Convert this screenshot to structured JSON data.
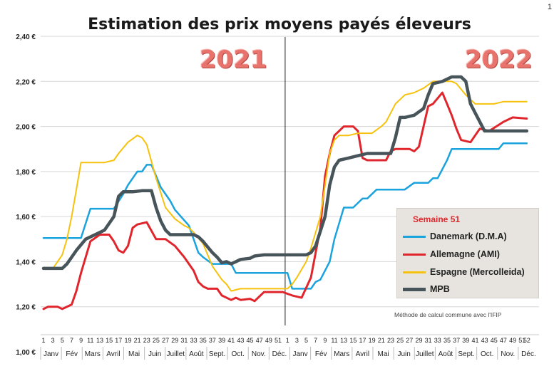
{
  "corner_text": "1",
  "chart_data": {
    "type": "line",
    "title": "Estimation des prix moyens payés éleveurs",
    "period_labels": [
      "2021",
      "2022"
    ],
    "ylim": [
      1.0,
      2.4
    ],
    "yticks": [
      "1,00 €",
      "1,20 €",
      "1,40 €",
      "1,60 €",
      "1,80 €",
      "2,00 €",
      "2,20 €",
      "2,40 €"
    ],
    "ytick_values": [
      1.0,
      1.2,
      1.4,
      1.6,
      1.8,
      2.0,
      2.2,
      2.4
    ],
    "x_tick_labels": [
      "1",
      "3",
      "5",
      "7",
      "9",
      "11",
      "13",
      "15",
      "17",
      "19",
      "21",
      "23",
      "25",
      "27",
      "29",
      "31",
      "33",
      "35",
      "37",
      "39",
      "41",
      "43",
      "45",
      "47",
      "49",
      "51",
      "1",
      "3",
      "5",
      "7",
      "9",
      "11",
      "13",
      "15",
      "17",
      "19",
      "21",
      "23",
      "25",
      "27",
      "29",
      "31",
      "33",
      "35",
      "37",
      "39",
      "41",
      "43",
      "45",
      "47",
      "49",
      "51",
      "52"
    ],
    "months": [
      "Janv",
      "Fév",
      "Mars",
      "Avril",
      "Mai",
      "Juin",
      "Juillet",
      "Août",
      "Sept.",
      "Oct.",
      "Nov.",
      "Déc.",
      "Janv",
      "Fév",
      "Mars",
      "Avril",
      "Mai",
      "Juin",
      "Juillet",
      "Août",
      "Sept.",
      "Oct.",
      "Nov.",
      "Déc."
    ],
    "legend_title": "Semaine 51",
    "note": "Méthode de calcul commune avec l'IFIP",
    "grid": "horizontal",
    "legend_placement": "right",
    "series": [
      {
        "name": "Danemark (D.M.A)",
        "color": "#1aa3dd",
        "values": [
          [
            1,
            1.505
          ],
          [
            9,
            1.505
          ],
          [
            11,
            1.635
          ],
          [
            16,
            1.635
          ],
          [
            18,
            1.7
          ],
          [
            19,
            1.74
          ],
          [
            21,
            1.8
          ],
          [
            22,
            1.8
          ],
          [
            23,
            1.83
          ],
          [
            24,
            1.83
          ],
          [
            26,
            1.73
          ],
          [
            28,
            1.67
          ],
          [
            29,
            1.63
          ],
          [
            32,
            1.56
          ],
          [
            34,
            1.44
          ],
          [
            35,
            1.42
          ],
          [
            37,
            1.39
          ],
          [
            41,
            1.39
          ],
          [
            42,
            1.35
          ],
          [
            52,
            1.35
          ],
          [
            53,
            1.35
          ],
          [
            54,
            1.28
          ],
          [
            58,
            1.28
          ],
          [
            59,
            1.31
          ],
          [
            60,
            1.32
          ],
          [
            62,
            1.4
          ],
          [
            63,
            1.5
          ],
          [
            65,
            1.64
          ],
          [
            67,
            1.64
          ],
          [
            69,
            1.68
          ],
          [
            70,
            1.68
          ],
          [
            72,
            1.72
          ],
          [
            78,
            1.72
          ],
          [
            80,
            1.75
          ],
          [
            83,
            1.75
          ],
          [
            84,
            1.77
          ],
          [
            85,
            1.77
          ],
          [
            87,
            1.85
          ],
          [
            88,
            1.9
          ],
          [
            98,
            1.9
          ],
          [
            99,
            1.925
          ],
          [
            104,
            1.925
          ]
        ]
      },
      {
        "name": "Allemagne (AMI)",
        "color": "#e0262c",
        "values": [
          [
            1,
            1.19
          ],
          [
            2,
            1.2
          ],
          [
            4,
            1.2
          ],
          [
            5,
            1.19
          ],
          [
            7,
            1.21
          ],
          [
            8,
            1.27
          ],
          [
            9,
            1.35
          ],
          [
            11,
            1.49
          ],
          [
            13,
            1.52
          ],
          [
            15,
            1.52
          ],
          [
            16,
            1.49
          ],
          [
            17,
            1.45
          ],
          [
            18,
            1.44
          ],
          [
            19,
            1.47
          ],
          [
            20,
            1.55
          ],
          [
            21,
            1.565
          ],
          [
            23,
            1.575
          ],
          [
            25,
            1.5
          ],
          [
            27,
            1.5
          ],
          [
            29,
            1.47
          ],
          [
            31,
            1.42
          ],
          [
            33,
            1.36
          ],
          [
            34,
            1.31
          ],
          [
            35,
            1.29
          ],
          [
            36,
            1.28
          ],
          [
            38,
            1.28
          ],
          [
            39,
            1.25
          ],
          [
            41,
            1.23
          ],
          [
            42,
            1.24
          ],
          [
            43,
            1.23
          ],
          [
            45,
            1.235
          ],
          [
            46,
            1.225
          ],
          [
            48,
            1.265
          ],
          [
            52,
            1.265
          ],
          [
            54,
            1.25
          ],
          [
            56,
            1.24
          ],
          [
            58,
            1.33
          ],
          [
            60,
            1.55
          ],
          [
            61,
            1.78
          ],
          [
            62,
            1.88
          ],
          [
            63,
            1.96
          ],
          [
            64,
            1.98
          ],
          [
            65,
            2.0
          ],
          [
            67,
            2.0
          ],
          [
            68,
            1.98
          ],
          [
            69,
            1.86
          ],
          [
            70,
            1.85
          ],
          [
            74,
            1.85
          ],
          [
            75,
            1.89
          ],
          [
            76,
            1.9
          ],
          [
            79,
            1.9
          ],
          [
            80,
            1.89
          ],
          [
            81,
            1.91
          ],
          [
            83,
            2.09
          ],
          [
            84,
            2.1
          ],
          [
            86,
            2.15
          ],
          [
            87,
            2.1
          ],
          [
            88,
            2.05
          ],
          [
            89,
            1.99
          ],
          [
            90,
            1.94
          ],
          [
            92,
            1.93
          ],
          [
            93,
            1.96
          ],
          [
            94,
            1.99
          ],
          [
            96,
            1.98
          ],
          [
            99,
            2.02
          ],
          [
            101,
            2.04
          ],
          [
            104,
            2.035
          ]
        ]
      },
      {
        "name": "Espagne (Mercolleida)",
        "color": "#f7c20d",
        "values": [
          [
            1,
            1.37
          ],
          [
            3,
            1.37
          ],
          [
            5,
            1.43
          ],
          [
            6,
            1.5
          ],
          [
            7,
            1.6
          ],
          [
            8,
            1.72
          ],
          [
            9,
            1.84
          ],
          [
            11,
            1.84
          ],
          [
            14,
            1.84
          ],
          [
            16,
            1.85
          ],
          [
            17,
            1.88
          ],
          [
            19,
            1.93
          ],
          [
            21,
            1.96
          ],
          [
            22,
            1.95
          ],
          [
            23,
            1.92
          ],
          [
            25,
            1.77
          ],
          [
            27,
            1.64
          ],
          [
            29,
            1.59
          ],
          [
            31,
            1.56
          ],
          [
            32,
            1.55
          ],
          [
            33,
            1.53
          ],
          [
            35,
            1.48
          ],
          [
            37,
            1.38
          ],
          [
            39,
            1.32
          ],
          [
            40,
            1.3
          ],
          [
            41,
            1.27
          ],
          [
            43,
            1.28
          ],
          [
            46,
            1.28
          ],
          [
            48,
            1.28
          ],
          [
            53,
            1.28
          ],
          [
            54,
            1.3
          ],
          [
            55,
            1.33
          ],
          [
            57,
            1.4
          ],
          [
            58,
            1.46
          ],
          [
            60,
            1.6
          ],
          [
            61,
            1.74
          ],
          [
            62,
            1.88
          ],
          [
            63,
            1.94
          ],
          [
            64,
            1.96
          ],
          [
            66,
            1.96
          ],
          [
            68,
            1.97
          ],
          [
            71,
            1.97
          ],
          [
            73,
            2.0
          ],
          [
            74,
            2.02
          ],
          [
            76,
            2.1
          ],
          [
            78,
            2.14
          ],
          [
            80,
            2.15
          ],
          [
            82,
            2.17
          ],
          [
            84,
            2.2
          ],
          [
            86,
            2.2
          ],
          [
            88,
            2.2
          ],
          [
            89,
            2.19
          ],
          [
            91,
            2.14
          ],
          [
            93,
            2.1
          ],
          [
            95,
            2.1
          ],
          [
            97,
            2.1
          ],
          [
            99,
            2.11
          ],
          [
            104,
            2.11
          ]
        ]
      },
      {
        "name": "MPB",
        "color": "#47545a",
        "values": [
          [
            1,
            1.37
          ],
          [
            5,
            1.37
          ],
          [
            6,
            1.39
          ],
          [
            8,
            1.45
          ],
          [
            10,
            1.5
          ],
          [
            12,
            1.52
          ],
          [
            14,
            1.54
          ],
          [
            16,
            1.6
          ],
          [
            17,
            1.69
          ],
          [
            18,
            1.71
          ],
          [
            20,
            1.71
          ],
          [
            22,
            1.715
          ],
          [
            24,
            1.715
          ],
          [
            25,
            1.64
          ],
          [
            26,
            1.58
          ],
          [
            27,
            1.54
          ],
          [
            28,
            1.52
          ],
          [
            33,
            1.52
          ],
          [
            34,
            1.51
          ],
          [
            35,
            1.49
          ],
          [
            37,
            1.44
          ],
          [
            38,
            1.42
          ],
          [
            39,
            1.395
          ],
          [
            40,
            1.4
          ],
          [
            41,
            1.39
          ],
          [
            43,
            1.41
          ],
          [
            45,
            1.415
          ],
          [
            46,
            1.425
          ],
          [
            48,
            1.43
          ],
          [
            52,
            1.43
          ],
          [
            57,
            1.43
          ],
          [
            58,
            1.44
          ],
          [
            59,
            1.47
          ],
          [
            61,
            1.6
          ],
          [
            62,
            1.74
          ],
          [
            63,
            1.82
          ],
          [
            64,
            1.85
          ],
          [
            66,
            1.86
          ],
          [
            68,
            1.87
          ],
          [
            70,
            1.88
          ],
          [
            75,
            1.88
          ],
          [
            76,
            1.95
          ],
          [
            77,
            2.04
          ],
          [
            78,
            2.04
          ],
          [
            80,
            2.05
          ],
          [
            82,
            2.08
          ],
          [
            83,
            2.14
          ],
          [
            84,
            2.19
          ],
          [
            86,
            2.2
          ],
          [
            88,
            2.22
          ],
          [
            90,
            2.22
          ],
          [
            91,
            2.2
          ],
          [
            92,
            2.1
          ],
          [
            94,
            2.02
          ],
          [
            95,
            1.98
          ],
          [
            97,
            1.98
          ],
          [
            99,
            1.98
          ],
          [
            104,
            1.98
          ]
        ]
      }
    ]
  }
}
